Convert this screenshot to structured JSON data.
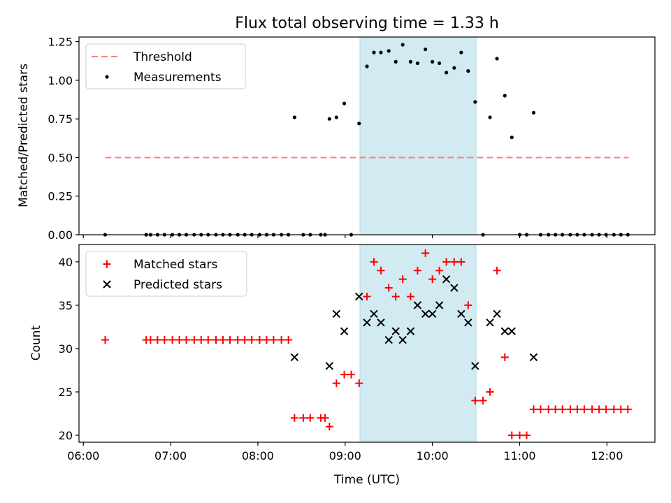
{
  "chart_data": {
    "title": "Flux total observing time = 1.33 h",
    "xlabel": "Time (UTC)",
    "x_ticks": [
      "06:00",
      "07:00",
      "08:00",
      "09:00",
      "10:00",
      "11:00",
      "12:00"
    ],
    "x_range_hours": [
      5.95,
      12.55
    ],
    "highlight_span_hours": [
      9.17,
      10.5
    ],
    "colors": {
      "threshold": "#ff7f7f",
      "measurements": "#000000",
      "matched": "#ff0000",
      "predicted": "#000000",
      "span": "#add8e6"
    },
    "panels": [
      {
        "type": "scatter",
        "ylabel": "Matched/Predicted stars",
        "ylim": [
          0,
          1.28
        ],
        "y_ticks": [
          "0.00",
          "0.25",
          "0.50",
          "0.75",
          "1.00",
          "1.25"
        ],
        "legend_position": "upper-left",
        "threshold": {
          "name": "Threshold",
          "value": 0.5,
          "x_range_hours": [
            6.25,
            12.25
          ]
        },
        "series": [
          {
            "name": "Measurements",
            "points": [
              [
                6.25,
                0
              ],
              [
                6.72,
                0
              ],
              [
                6.77,
                0
              ],
              [
                6.85,
                0
              ],
              [
                6.93,
                0
              ],
              [
                7.02,
                0
              ],
              [
                7.1,
                0
              ],
              [
                7.18,
                0
              ],
              [
                7.27,
                0
              ],
              [
                7.35,
                0
              ],
              [
                7.43,
                0
              ],
              [
                7.52,
                0
              ],
              [
                7.6,
                0
              ],
              [
                7.68,
                0
              ],
              [
                7.77,
                0
              ],
              [
                7.85,
                0
              ],
              [
                7.93,
                0
              ],
              [
                8.02,
                0
              ],
              [
                8.1,
                0
              ],
              [
                8.18,
                0
              ],
              [
                8.27,
                0
              ],
              [
                8.35,
                0
              ],
              [
                8.42,
                0.76
              ],
              [
                8.52,
                0
              ],
              [
                8.6,
                0
              ],
              [
                8.72,
                0
              ],
              [
                8.77,
                0
              ],
              [
                8.82,
                0.75
              ],
              [
                8.9,
                0.76
              ],
              [
                8.99,
                0.85
              ],
              [
                9.07,
                0
              ],
              [
                9.16,
                0.72
              ],
              [
                9.25,
                1.09
              ],
              [
                9.33,
                1.18
              ],
              [
                9.41,
                1.18
              ],
              [
                9.5,
                1.19
              ],
              [
                9.58,
                1.12
              ],
              [
                9.66,
                1.23
              ],
              [
                9.75,
                1.12
              ],
              [
                9.83,
                1.11
              ],
              [
                9.92,
                1.2
              ],
              [
                10.0,
                1.12
              ],
              [
                10.08,
                1.11
              ],
              [
                10.16,
                1.05
              ],
              [
                10.25,
                1.08
              ],
              [
                10.33,
                1.18
              ],
              [
                10.41,
                1.06
              ],
              [
                10.49,
                0.86
              ],
              [
                10.58,
                0
              ],
              [
                10.66,
                0.76
              ],
              [
                10.74,
                1.14
              ],
              [
                10.83,
                0.9
              ],
              [
                10.91,
                0.63
              ],
              [
                11.0,
                0
              ],
              [
                11.08,
                0
              ],
              [
                11.16,
                0.79
              ],
              [
                11.24,
                0
              ],
              [
                11.33,
                0
              ],
              [
                11.41,
                0
              ],
              [
                11.49,
                0
              ],
              [
                11.58,
                0
              ],
              [
                11.66,
                0
              ],
              [
                11.74,
                0
              ],
              [
                11.83,
                0
              ],
              [
                11.91,
                0
              ],
              [
                11.99,
                0
              ],
              [
                12.08,
                0
              ],
              [
                12.16,
                0
              ],
              [
                12.24,
                0
              ]
            ]
          }
        ]
      },
      {
        "type": "scatter",
        "ylabel": "Count",
        "ylim": [
          19.2,
          42
        ],
        "y_ticks": [
          "20",
          "25",
          "30",
          "35",
          "40"
        ],
        "legend_position": "upper-left",
        "series": [
          {
            "name": "Matched stars",
            "marker": "+",
            "points": [
              [
                6.25,
                31
              ],
              [
                6.72,
                31
              ],
              [
                6.77,
                31
              ],
              [
                6.85,
                31
              ],
              [
                6.93,
                31
              ],
              [
                7.02,
                31
              ],
              [
                7.1,
                31
              ],
              [
                7.18,
                31
              ],
              [
                7.27,
                31
              ],
              [
                7.35,
                31
              ],
              [
                7.43,
                31
              ],
              [
                7.52,
                31
              ],
              [
                7.6,
                31
              ],
              [
                7.68,
                31
              ],
              [
                7.77,
                31
              ],
              [
                7.85,
                31
              ],
              [
                7.93,
                31
              ],
              [
                8.02,
                31
              ],
              [
                8.1,
                31
              ],
              [
                8.18,
                31
              ],
              [
                8.27,
                31
              ],
              [
                8.35,
                31
              ],
              [
                8.42,
                22
              ],
              [
                8.52,
                22
              ],
              [
                8.6,
                22
              ],
              [
                8.72,
                22
              ],
              [
                8.77,
                22
              ],
              [
                8.82,
                21
              ],
              [
                8.9,
                26
              ],
              [
                8.99,
                27
              ],
              [
                9.07,
                27
              ],
              [
                9.16,
                26
              ],
              [
                9.25,
                36
              ],
              [
                9.33,
                40
              ],
              [
                9.41,
                39
              ],
              [
                9.5,
                37
              ],
              [
                9.58,
                36
              ],
              [
                9.66,
                38
              ],
              [
                9.75,
                36
              ],
              [
                9.83,
                39
              ],
              [
                9.92,
                41
              ],
              [
                10.0,
                38
              ],
              [
                10.08,
                39
              ],
              [
                10.16,
                40
              ],
              [
                10.25,
                40
              ],
              [
                10.33,
                40
              ],
              [
                10.41,
                35
              ],
              [
                10.49,
                24
              ],
              [
                10.58,
                24
              ],
              [
                10.66,
                25
              ],
              [
                10.74,
                39
              ],
              [
                10.83,
                29
              ],
              [
                10.91,
                20
              ],
              [
                11.0,
                20
              ],
              [
                11.08,
                20
              ],
              [
                11.16,
                23
              ],
              [
                11.24,
                23
              ],
              [
                11.33,
                23
              ],
              [
                11.41,
                23
              ],
              [
                11.49,
                23
              ],
              [
                11.58,
                23
              ],
              [
                11.66,
                23
              ],
              [
                11.74,
                23
              ],
              [
                11.83,
                23
              ],
              [
                11.91,
                23
              ],
              [
                11.99,
                23
              ],
              [
                12.08,
                23
              ],
              [
                12.16,
                23
              ],
              [
                12.24,
                23
              ]
            ]
          },
          {
            "name": "Predicted stars",
            "marker": "x",
            "points": [
              [
                8.42,
                29
              ],
              [
                8.82,
                28
              ],
              [
                8.9,
                34
              ],
              [
                8.99,
                32
              ],
              [
                9.16,
                36
              ],
              [
                9.25,
                33
              ],
              [
                9.33,
                34
              ],
              [
                9.41,
                33
              ],
              [
                9.5,
                31
              ],
              [
                9.58,
                32
              ],
              [
                9.66,
                31
              ],
              [
                9.75,
                32
              ],
              [
                9.83,
                35
              ],
              [
                9.92,
                34
              ],
              [
                10.0,
                34
              ],
              [
                10.08,
                35
              ],
              [
                10.16,
                38
              ],
              [
                10.25,
                37
              ],
              [
                10.33,
                34
              ],
              [
                10.41,
                33
              ],
              [
                10.49,
                28
              ],
              [
                10.66,
                33
              ],
              [
                10.74,
                34
              ],
              [
                10.83,
                32
              ],
              [
                10.91,
                32
              ],
              [
                11.16,
                29
              ]
            ]
          }
        ]
      }
    ]
  }
}
